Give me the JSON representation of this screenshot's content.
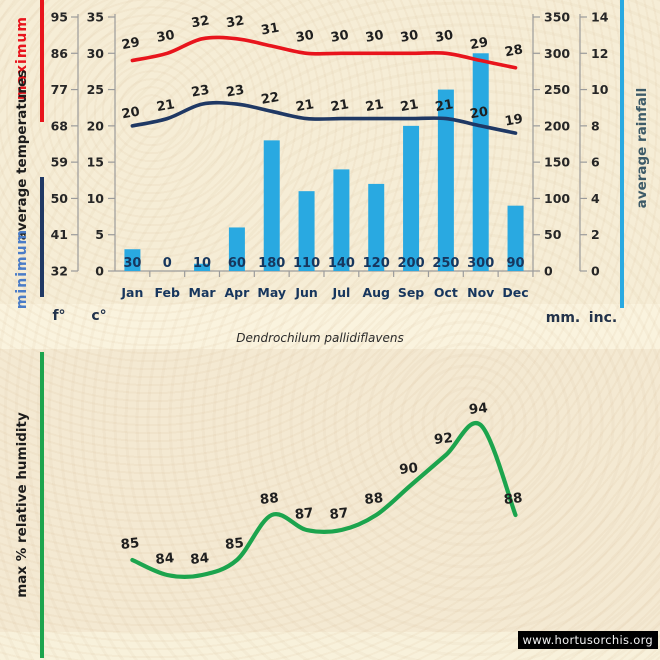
{
  "title": "Dendrochilum pallidiflavens",
  "watermark": "www.hortusorchis.org",
  "side_labels": {
    "maximum": "maximum",
    "average_temperatures": "average temperatures",
    "minimum": "minimum",
    "average_rainfall": "average rainfall",
    "max_relative_humidity": "max % relative humidity"
  },
  "left_axis": {
    "f_label": "f°",
    "c_label": "c°",
    "f_ticks": [
      95,
      86,
      77,
      68,
      59,
      50,
      41,
      32
    ],
    "c_ticks": [
      35,
      30,
      25,
      20,
      15,
      10,
      5,
      0
    ]
  },
  "right_axis": {
    "mm_label": "mm.",
    "inc_label": "inc.",
    "mm_ticks": [
      350,
      300,
      250,
      200,
      150,
      100,
      50,
      0
    ],
    "inc_ticks": [
      14,
      12,
      10,
      8,
      6,
      4,
      2,
      0
    ]
  },
  "colors": {
    "max_line": "#e8141c",
    "min_line": "#1f3864",
    "rain_bar": "#29a9e1",
    "humidity_line": "#1ca44d",
    "axis": "#9b9b9b",
    "label_dark": "#1f1f1f",
    "label_navy": "#17365d",
    "background": "#f6edd6"
  },
  "chart_data": [
    {
      "type": "line+bar",
      "title": "average temperatures and rainfall by month",
      "categories": [
        "Jan",
        "Feb",
        "Mar",
        "Apr",
        "May",
        "Jun",
        "Jul",
        "Aug",
        "Sep",
        "Oct",
        "Nov",
        "Dec"
      ],
      "series": [
        {
          "name": "maximum temperature (°C)",
          "type": "line",
          "values": [
            29,
            30,
            32,
            32,
            31,
            30,
            30,
            30,
            30,
            30,
            29,
            28
          ]
        },
        {
          "name": "minimum temperature (°C)",
          "type": "line",
          "values": [
            20,
            21,
            23,
            23,
            22,
            21,
            21,
            21,
            21,
            21,
            20,
            19
          ]
        },
        {
          "name": "average rainfall (mm)",
          "type": "bar",
          "values": [
            30,
            0,
            10,
            60,
            180,
            110,
            140,
            120,
            200,
            250,
            300,
            90
          ]
        }
      ],
      "y_left_celsius_range": [
        0,
        35
      ],
      "y_right_mm_range": [
        0,
        350
      ],
      "grid": false,
      "legend": "vertical side labels"
    },
    {
      "type": "line",
      "title": "max % relative humidity by month",
      "categories": [
        "Jan",
        "Feb",
        "Mar",
        "Apr",
        "May",
        "Jun",
        "Jul",
        "Aug",
        "Sep",
        "Oct",
        "Nov",
        "Dec"
      ],
      "values": [
        85,
        84,
        84,
        85,
        88,
        87,
        87,
        88,
        90,
        92,
        94,
        88
      ],
      "axes_visible": false
    }
  ]
}
